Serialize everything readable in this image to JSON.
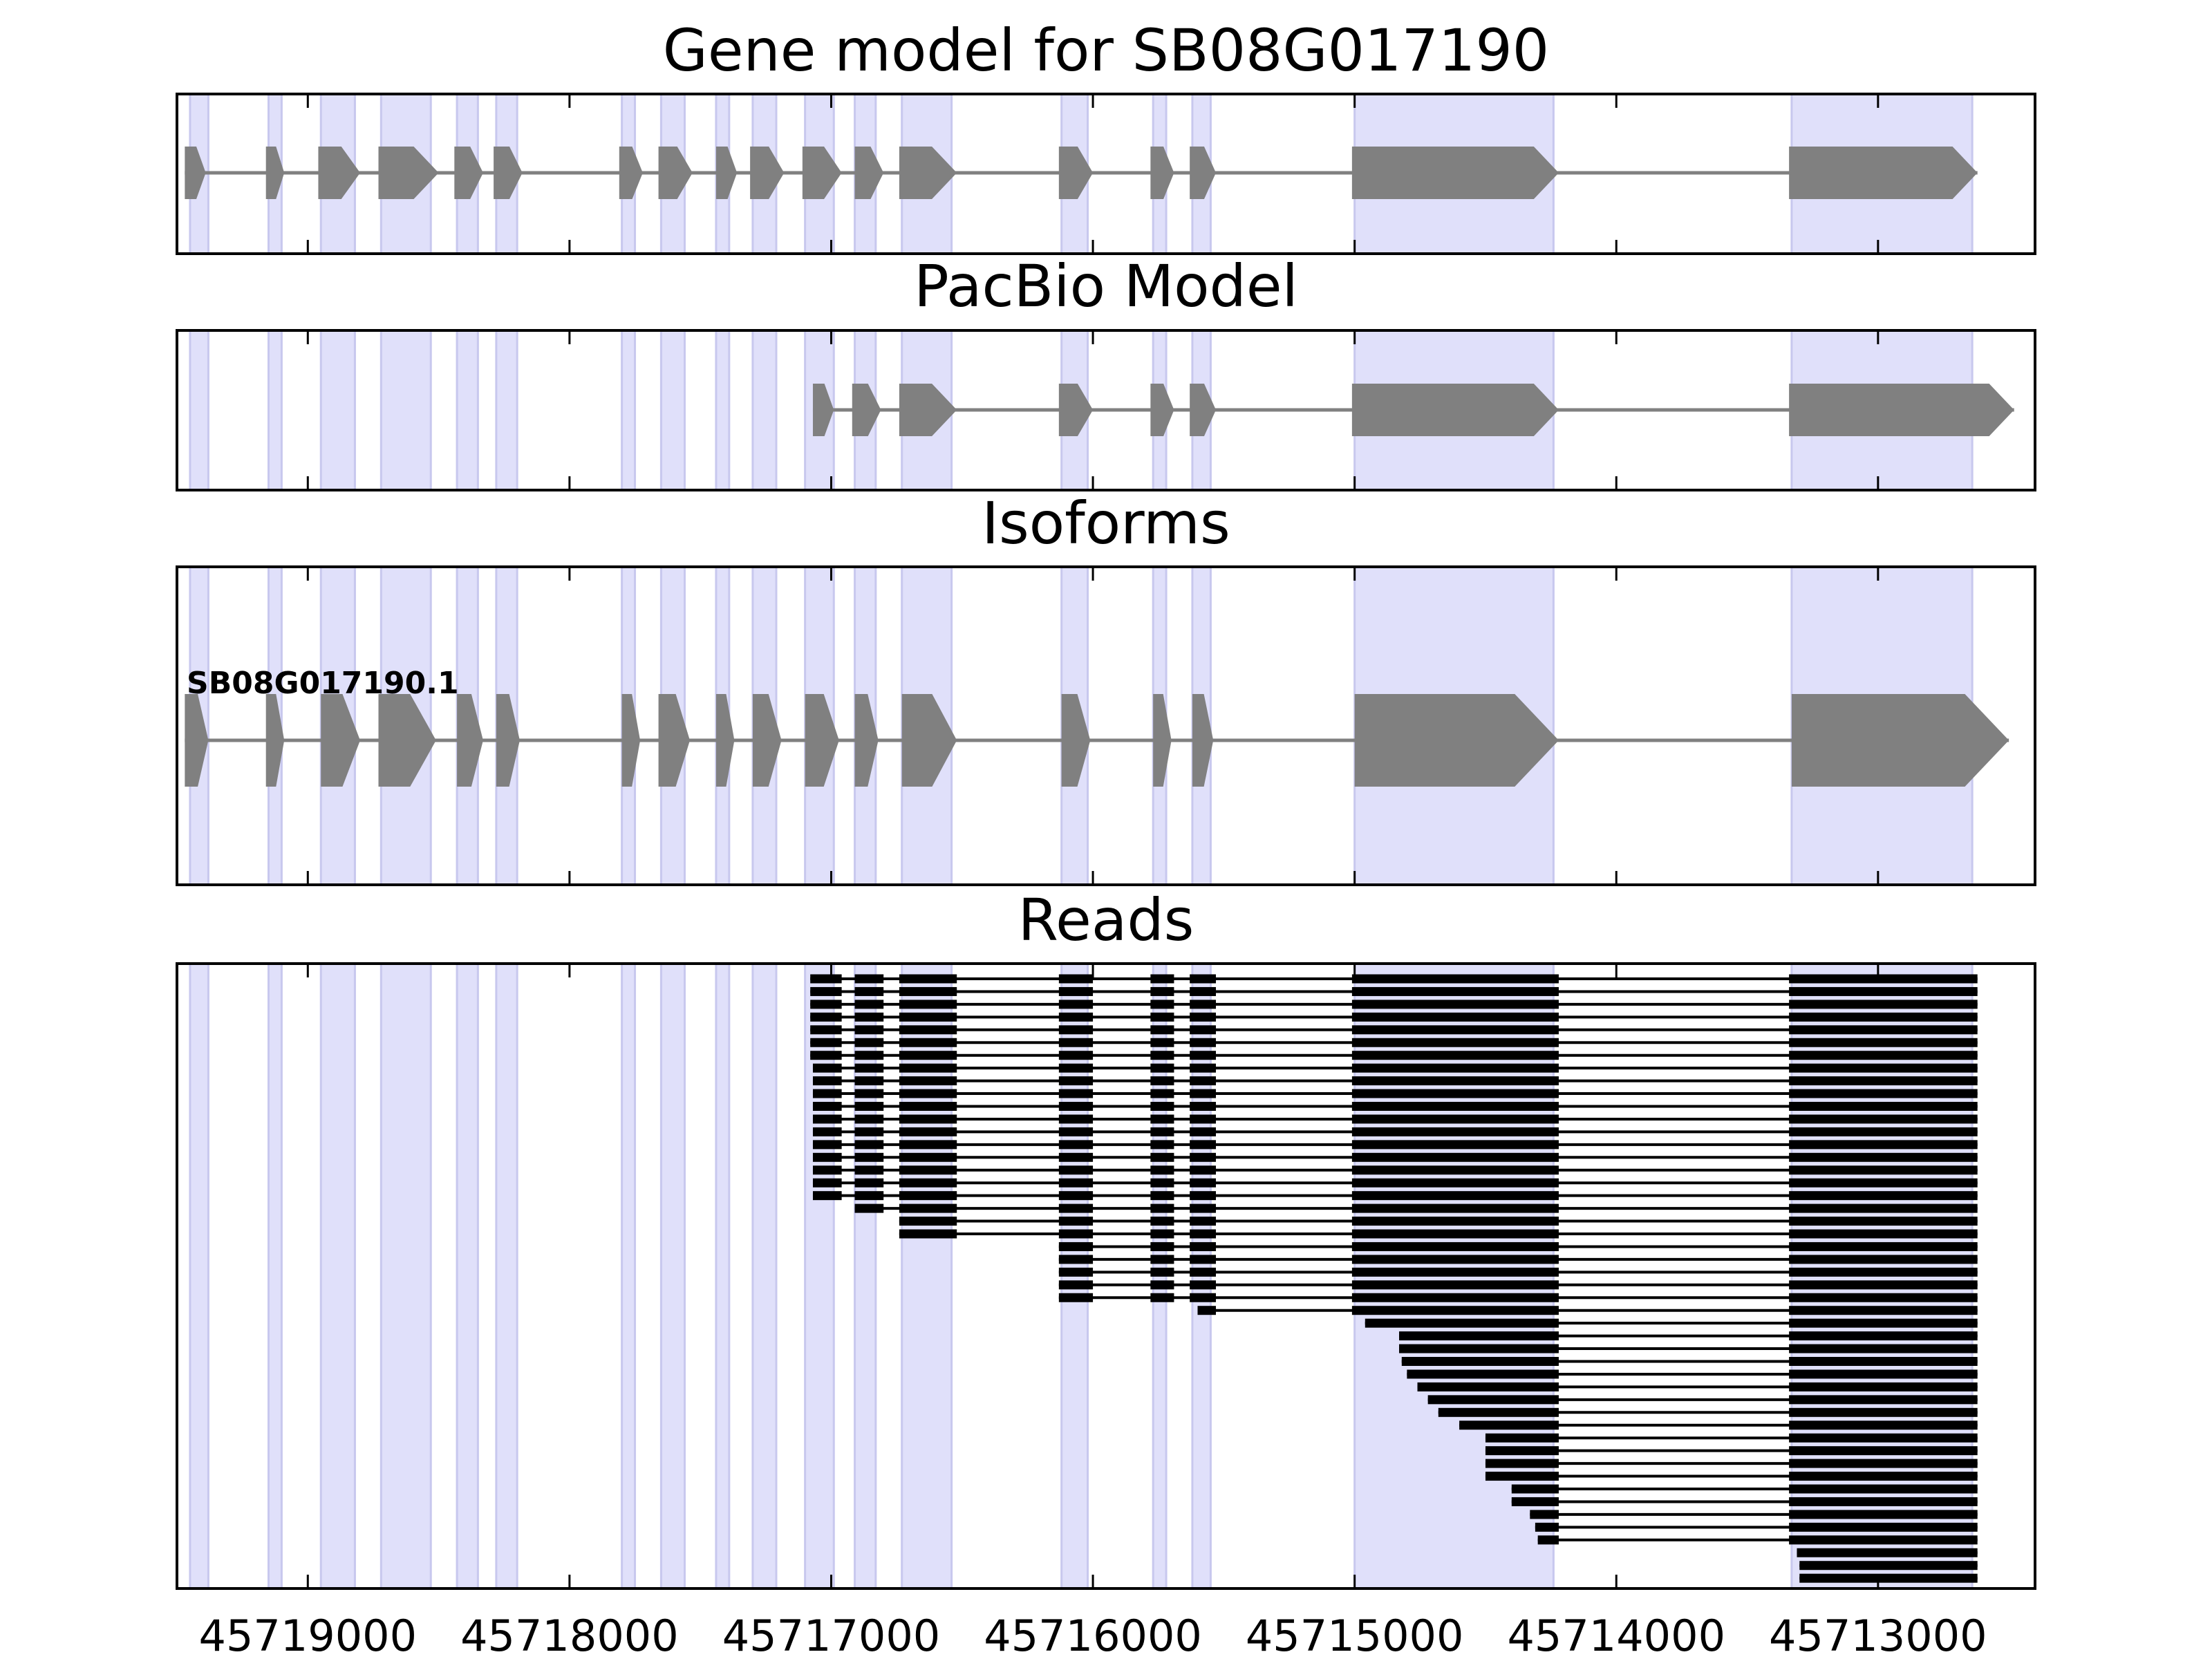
{
  "chart_data": {
    "type": "gene-track",
    "xlim": [
      45719500,
      45712400
    ],
    "xticks": [
      45719000,
      45718000,
      45717000,
      45716000,
      45715000,
      45714000,
      45713000
    ],
    "xtick_labels": [
      "45719000",
      "45718000",
      "45717000",
      "45716000",
      "45715000",
      "45714000",
      "45713000"
    ],
    "highlight_color": "#e0e0fa",
    "feature_color": "#808080",
    "read_color": "#000000",
    "highlight_bands": [
      [
        45719450,
        45719380
      ],
      [
        45719150,
        45719100
      ],
      [
        45718950,
        45718820
      ],
      [
        45718720,
        45718530
      ],
      [
        45718430,
        45718350
      ],
      [
        45718280,
        45718200
      ],
      [
        45717800,
        45717750
      ],
      [
        45717650,
        45717560
      ],
      [
        45717440,
        45717390
      ],
      [
        45717300,
        45717210
      ],
      [
        45717100,
        45716990
      ],
      [
        45716910,
        45716830
      ],
      [
        45716730,
        45716540
      ],
      [
        45716120,
        45716020
      ],
      [
        45715770,
        45715720
      ],
      [
        45715620,
        45715550
      ],
      [
        45715000,
        45714240
      ],
      [
        45713330,
        45712640
      ]
    ],
    "panels": [
      {
        "title": "Gene model for SB08G017190",
        "exons": [
          [
            45719470,
            45719390
          ],
          [
            45719160,
            45719090
          ],
          [
            45718960,
            45718800
          ],
          [
            45718730,
            45718500
          ],
          [
            45718440,
            45718330
          ],
          [
            45718290,
            45718180
          ],
          [
            45717810,
            45717720
          ],
          [
            45717660,
            45717530
          ],
          [
            45717440,
            45717360
          ],
          [
            45717310,
            45717180
          ],
          [
            45717110,
            45716960
          ],
          [
            45716910,
            45716800
          ],
          [
            45716740,
            45716520
          ],
          [
            45716130,
            45716000
          ],
          [
            45715780,
            45715690
          ],
          [
            45715630,
            45715530
          ],
          [
            45715010,
            45714220
          ],
          [
            45713340,
            45712620
          ]
        ]
      },
      {
        "title": "PacBio Model",
        "exons": [
          [
            45717070,
            45716990
          ],
          [
            45716920,
            45716810
          ],
          [
            45716740,
            45716520
          ],
          [
            45716130,
            45716000
          ],
          [
            45715780,
            45715690
          ],
          [
            45715630,
            45715530
          ],
          [
            45715010,
            45714220
          ],
          [
            45713340,
            45712480
          ]
        ]
      },
      {
        "title": "Isoforms",
        "isoform_label": "SB08G017190.1",
        "exons": [
          [
            45719470,
            45719380
          ],
          [
            45719160,
            45719090
          ],
          [
            45718950,
            45718800
          ],
          [
            45718730,
            45718510
          ],
          [
            45718430,
            45718330
          ],
          [
            45718280,
            45718190
          ],
          [
            45717800,
            45717730
          ],
          [
            45717660,
            45717540
          ],
          [
            45717440,
            45717370
          ],
          [
            45717300,
            45717190
          ],
          [
            45717100,
            45716970
          ],
          [
            45716910,
            45716820
          ],
          [
            45716730,
            45716520
          ],
          [
            45716120,
            45716010
          ],
          [
            45715770,
            45715700
          ],
          [
            45715620,
            45715540
          ],
          [
            45715000,
            45714220
          ],
          [
            45713330,
            45712500
          ]
        ]
      },
      {
        "title": "Reads",
        "reads": [
          [
            45717080,
            45712600
          ],
          [
            45717080,
            45712600
          ],
          [
            45717080,
            45712600
          ],
          [
            45717080,
            45712600
          ],
          [
            45717080,
            45712580
          ],
          [
            45717080,
            45712580
          ],
          [
            45717080,
            45712580
          ],
          [
            45717070,
            45712580
          ],
          [
            45717070,
            45712580
          ],
          [
            45717070,
            45712580
          ],
          [
            45717070,
            45712580
          ],
          [
            45717070,
            45712580
          ],
          [
            45717070,
            45712600
          ],
          [
            45717070,
            45712580
          ],
          [
            45717070,
            45712580
          ],
          [
            45717070,
            45712580
          ],
          [
            45717070,
            45712580
          ],
          [
            45717070,
            45712600
          ],
          [
            45716920,
            45712580
          ],
          [
            45716740,
            45712580
          ],
          [
            45716740,
            45712580
          ],
          [
            45716130,
            45712580
          ],
          [
            45716130,
            45712580
          ],
          [
            45716130,
            45712580
          ],
          [
            45716130,
            45712580
          ],
          [
            45716130,
            45712600
          ],
          [
            45715600,
            45712600
          ],
          [
            45714960,
            45712600
          ],
          [
            45714830,
            45712470
          ],
          [
            45714830,
            45712590
          ],
          [
            45714820,
            45712600
          ],
          [
            45714800,
            45712570
          ],
          [
            45714760,
            45712600
          ],
          [
            45714720,
            45712600
          ],
          [
            45714680,
            45712600
          ],
          [
            45714600,
            45712600
          ],
          [
            45714500,
            45712600
          ],
          [
            45714500,
            45712600
          ],
          [
            45714500,
            45712600
          ],
          [
            45714500,
            45712600
          ],
          [
            45714400,
            45712590
          ],
          [
            45714400,
            45712590
          ],
          [
            45714330,
            45712600
          ],
          [
            45714310,
            45712600
          ],
          [
            45714300,
            45712550
          ],
          [
            45713310,
            45712600
          ],
          [
            45713300,
            45712600
          ],
          [
            45713300,
            45712600
          ]
        ]
      }
    ]
  }
}
